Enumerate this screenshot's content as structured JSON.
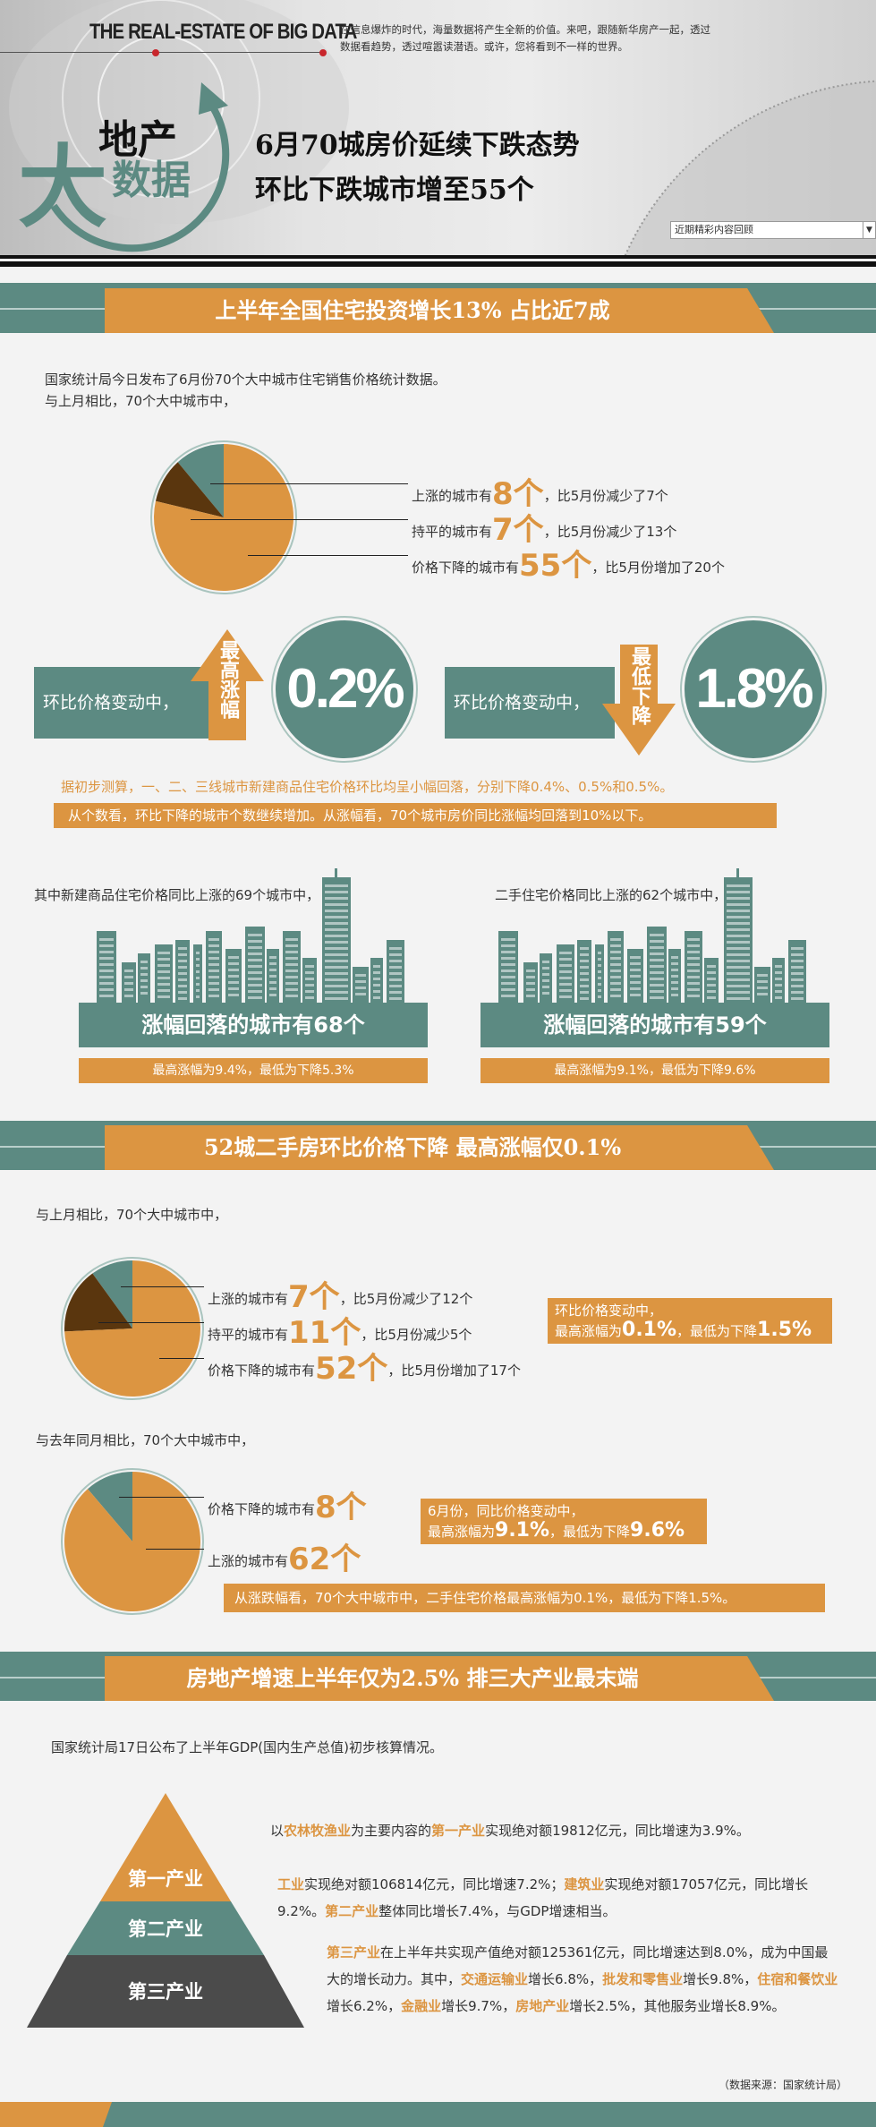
{
  "header": {
    "brand": "THE  REAL-ESTATE OF BIG DATA",
    "tagline": "在信息爆炸的时代，海量数据将产生全新的价值。来吧，跟随新华房产一起，透过数据看趋势，透过喧嚣读潜语。或许，您将看到不一样的世界。",
    "logo": {
      "big": "大",
      "top": "地产",
      "bottom": "数据"
    },
    "title_line1": "6月70城房价延续下跌态势",
    "title_line2": "环比下跌城市增至55个",
    "select_value": "近期精彩内容回顾"
  },
  "colors": {
    "teal": "#5c8a82",
    "orange": "#dc9541",
    "brown": "#5a360e",
    "dark": "#4b4b4b"
  },
  "section1": {
    "title": "上半年全国住宅投资增长13% 占比近7成",
    "intro1": "国家统计局今日发布了6月份70个大中城市住宅销售价格统计数据。",
    "intro2": "与上月相比，70个大中城市中，",
    "pie": [
      {
        "pre": "上涨的城市有",
        "num": "8个",
        "post": "，比5月份减少了7个",
        "value": 8,
        "color": "#5c8a82"
      },
      {
        "pre": "持平的城市有",
        "num": "7个",
        "post": "，比5月份减少了13个",
        "value": 7,
        "color": "#5a360e"
      },
      {
        "pre": "价格下降的城市有",
        "num": "55个",
        "post": "，比5月份增加了20个",
        "value": 55,
        "color": "#dc9541"
      }
    ],
    "change_left": {
      "label": "环比价格变动中，",
      "arrow": "最高涨幅",
      "value": "0.2%"
    },
    "change_right": {
      "label": "环比价格变动中，",
      "arrow": "最低下降",
      "value": "1.8%"
    },
    "note": "据初步测算，一、二、三线城市新建商品住宅价格环比均呈小幅回落，分别下降0.4%、0.5%和0.5%。",
    "note_bar": "从个数看，环比下降的城市个数继续增加。从涨幅看，70个城市房价同比涨幅均回落到10%以下。",
    "city_left": {
      "intro": "其中新建商品住宅价格同比上涨的69个城市中，",
      "title": "涨幅回落的城市有68个",
      "sub": "最高涨幅为9.4%，最低为下降5.3%"
    },
    "city_right": {
      "intro": "二手住宅价格同比上涨的62个城市中，",
      "title": "涨幅回落的城市有59个",
      "sub": "最高涨幅为9.1%，最低为下降9.6%"
    }
  },
  "section2": {
    "title": "52城二手房环比价格下降 最高涨幅仅0.1%",
    "intro1": "与上月相比，70个大中城市中，",
    "pie1": [
      {
        "pre": "上涨的城市有",
        "num": "7个",
        "post": "，比5月份减少了12个",
        "value": 7,
        "color": "#5c8a82"
      },
      {
        "pre": "持平的城市有",
        "num": "11个",
        "post": "，比5月份减少5个",
        "value": 11,
        "color": "#5a360e"
      },
      {
        "pre": "价格下降的城市有",
        "num": "52个",
        "post": "，比5月份增加了17个",
        "value": 52,
        "color": "#dc9541"
      }
    ],
    "box1": {
      "line1": "环比价格变动中，",
      "a": "最高涨幅为",
      "v1": "0.1%",
      "b": "，最低为下降",
      "v2": "1.5%"
    },
    "intro2": "与去年同月相比，70个大中城市中，",
    "pie2": [
      {
        "pre": "价格下降的城市有",
        "num": "8个",
        "post": "",
        "value": 8,
        "color": "#5c8a82"
      },
      {
        "pre": "上涨的城市有",
        "num": "62个",
        "post": "",
        "value": 62,
        "color": "#dc9541"
      }
    ],
    "box2": {
      "line1": "6月份，同比价格变动中，",
      "a": "最高涨幅为",
      "v1": "9.1%",
      "b": "，最低为下降",
      "v2": "9.6%"
    },
    "bar": "从涨跌幅看，70个大中城市中，二手住宅价格最高涨幅为0.1%，最低为下降1.5%。"
  },
  "section3": {
    "title": "房地产增速上半年仅为2.5% 排三大产业最末端",
    "intro": "国家统计局17日公布了上半年GDP(国内生产总值)初步核算情况。",
    "tiers": [
      "第一产业",
      "第二产业",
      "第三产业"
    ],
    "p1": [
      "以",
      "农林牧渔业",
      "为主要内容的",
      "第一产业",
      "实现绝对额19812亿元，同比增速为3.9%。"
    ],
    "p2": [
      "工业",
      "实现绝对额106814亿元，同比增速7.2%；",
      "建筑业",
      "实现绝对额17057亿元，同比增长9.2%。",
      "第二产业",
      "整体同比增长7.4%，与GDP增速相当。"
    ],
    "p3": [
      "第三产业",
      "在上半年共实现产值绝对额125361亿元，同比增速达到8.0%，成为中国最大的增长动力。其中，",
      "交通运输业",
      "增长6.8%，",
      "批发和零售业",
      "增长9.8%，",
      "住宿和餐饮业",
      "增长6.2%，",
      "金融业",
      "增长9.7%，",
      "房地产业",
      "增长2.5%，其他服务业增长8.9%。"
    ],
    "source": "（数据来源：国家统计局）"
  }
}
